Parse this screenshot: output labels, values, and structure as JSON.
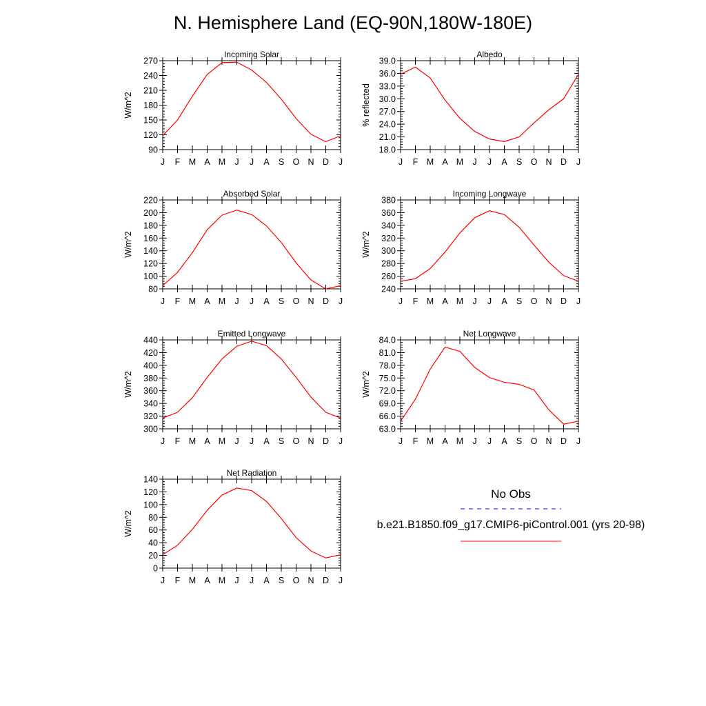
{
  "page_title": "N. Hemisphere Land (EQ-90N,180W-180E)",
  "months": [
    "J",
    "F",
    "M",
    "A",
    "M",
    "J",
    "J",
    "A",
    "S",
    "O",
    "N",
    "D",
    "J"
  ],
  "colors": {
    "model": "#ff0000",
    "obs": "#0000ff",
    "axis": "#000000"
  },
  "legend": {
    "obs_label": "No Obs",
    "model_label": "b.e21.B1850.f09_g17.CMIP6-piControl.001 (yrs 20-98)"
  },
  "chart_data": [
    {
      "type": "line",
      "title": "Incoming Solar",
      "ylabel": "W/m^2",
      "ylim": [
        90,
        270
      ],
      "yticks": [
        "90",
        "120",
        "150",
        "180",
        "210",
        "240",
        "270"
      ],
      "series": [
        {
          "name": "b.e21.B1850.f09_g17.CMIP6-piControl.001 (yrs 20-98)",
          "values": [
            118,
            150,
            198,
            242,
            266,
            267,
            251,
            226,
            192,
            153,
            121,
            106,
            118
          ]
        }
      ]
    },
    {
      "type": "line",
      "title": "Albedo",
      "ylabel": "% reflected",
      "ylim": [
        18,
        39
      ],
      "yticks": [
        "18.0",
        "21.0",
        "24.0",
        "27.0",
        "30.0",
        "33.0",
        "36.0",
        "39.0"
      ],
      "series": [
        {
          "name": "b.e21.B1850.f09_g17.CMIP6-piControl.001 (yrs 20-98)",
          "values": [
            35.8,
            37.5,
            34.9,
            29.7,
            25.4,
            22.3,
            20.5,
            19.9,
            21.0,
            24.3,
            27.4,
            30.0,
            35.8
          ]
        }
      ]
    },
    {
      "type": "line",
      "title": "Absorbed Solar",
      "ylabel": "W/m^2",
      "ylim": [
        80,
        220
      ],
      "yticks": [
        "80",
        "100",
        "120",
        "140",
        "160",
        "180",
        "200",
        "220"
      ],
      "series": [
        {
          "name": "b.e21.B1850.f09_g17.CMIP6-piControl.001 (yrs 20-98)",
          "values": [
            85,
            106,
            137,
            173,
            196,
            204,
            197,
            179,
            153,
            121,
            94,
            80,
            85
          ]
        }
      ]
    },
    {
      "type": "line",
      "title": "Incoming Longwave",
      "ylabel": "W/m^2",
      "ylim": [
        240,
        380
      ],
      "yticks": [
        "240",
        "260",
        "280",
        "300",
        "320",
        "340",
        "360",
        "380"
      ],
      "series": [
        {
          "name": "b.e21.B1850.f09_g17.CMIP6-piControl.001 (yrs 20-98)",
          "values": [
            252,
            256,
            272,
            298,
            328,
            352,
            363,
            357,
            337,
            309,
            282,
            261,
            252
          ]
        }
      ]
    },
    {
      "type": "line",
      "title": "Emitted Longwave",
      "ylabel": "W/m^2",
      "ylim": [
        300,
        440
      ],
      "yticks": [
        "300",
        "320",
        "340",
        "360",
        "380",
        "400",
        "420",
        "440"
      ],
      "series": [
        {
          "name": "b.e21.B1850.f09_g17.CMIP6-piControl.001 (yrs 20-98)",
          "values": [
            317,
            326,
            349,
            381,
            410,
            430,
            438,
            431,
            410,
            381,
            350,
            326,
            317
          ]
        }
      ]
    },
    {
      "type": "line",
      "title": "Net Longwave",
      "ylabel": "W/m^2",
      "ylim": [
        63,
        84
      ],
      "yticks": [
        "63.0",
        "66.0",
        "69.0",
        "72.0",
        "75.0",
        "78.0",
        "81.0",
        "84.0"
      ],
      "series": [
        {
          "name": "b.e21.B1850.f09_g17.CMIP6-piControl.001 (yrs 20-98)",
          "values": [
            64.8,
            70.0,
            77.1,
            82.3,
            81.3,
            77.5,
            75.1,
            74.0,
            73.5,
            72.2,
            67.5,
            64.1,
            64.8
          ]
        }
      ]
    },
    {
      "type": "line",
      "title": "Net Radiation",
      "ylabel": "W/m^2",
      "ylim": [
        0,
        140
      ],
      "yticks": [
        "0",
        "20",
        "40",
        "60",
        "80",
        "100",
        "120",
        "140"
      ],
      "series": [
        {
          "name": "b.e21.B1850.f09_g17.CMIP6-piControl.001 (yrs 20-98)",
          "values": [
            21,
            36,
            61,
            91,
            115,
            126,
            122,
            105,
            78,
            48,
            27,
            16,
            21
          ]
        }
      ]
    }
  ]
}
